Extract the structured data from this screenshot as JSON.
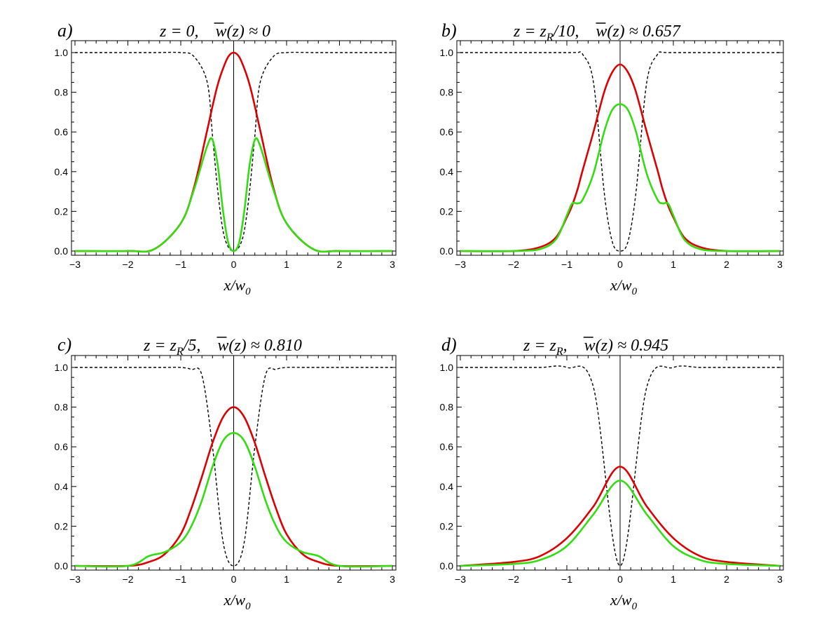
{
  "chart_data": [
    {
      "type": "line",
      "panel_label": "a)",
      "title_parts": [
        "z = 0,",
        "w(z) ≈ 0"
      ],
      "xlabel": "x/w",
      "xlabel_sub": "0",
      "xlim": [
        -3,
        3
      ],
      "ylim": [
        0,
        1
      ],
      "xticks": [
        "−3",
        "−2",
        "−1",
        "0",
        "1",
        "2",
        "3"
      ],
      "yticks": [
        "0.0",
        "0.2",
        "0.4",
        "0.6",
        "0.8",
        "1.0"
      ],
      "colors": {
        "red": "#dd0000",
        "green": "#33dd11",
        "dashed": "#000000"
      },
      "x": [
        -3.0,
        -2.0,
        -1.5,
        -1.0,
        -0.75,
        -0.5,
        -0.4,
        -0.3,
        -0.2,
        -0.1,
        0.0,
        0.1,
        0.2,
        0.3,
        0.4,
        0.5,
        0.75,
        1.0,
        1.5,
        2.0,
        3.0
      ],
      "series": [
        {
          "values": [
            0.0,
            0.0,
            0.01,
            0.14,
            0.32,
            0.61,
            0.73,
            0.84,
            0.92,
            0.98,
            1.0,
            0.98,
            0.92,
            0.84,
            0.73,
            0.61,
            0.32,
            0.14,
            0.01,
            0.0,
            0.0
          ]
        },
        {
          "values": [
            0.0,
            0.0,
            0.01,
            0.14,
            0.31,
            0.53,
            0.56,
            0.43,
            0.2,
            0.04,
            0.0,
            0.04,
            0.2,
            0.43,
            0.56,
            0.53,
            0.31,
            0.14,
            0.01,
            0.0,
            0.0
          ]
        },
        {
          "values": [
            1.0,
            1.0,
            1.0,
            1.0,
            0.98,
            0.85,
            0.58,
            0.3,
            0.1,
            0.02,
            0.0,
            0.02,
            0.1,
            0.3,
            0.58,
            0.85,
            0.98,
            1.0,
            1.0,
            1.0,
            1.0
          ]
        }
      ]
    },
    {
      "type": "line",
      "panel_label": "b)",
      "title_parts": [
        "z = z",
        "R",
        "/10,",
        "w(z) ≈ 0.657"
      ],
      "xlabel": "x/w",
      "xlabel_sub": "0",
      "xlim": [
        -3,
        3
      ],
      "ylim": [
        0,
        1
      ],
      "xticks": [
        "−3",
        "−2",
        "−1",
        "0",
        "1",
        "2",
        "3"
      ],
      "yticks": [
        "0.0",
        "0.2",
        "0.4",
        "0.6",
        "0.8",
        "1.0"
      ],
      "colors": {
        "red": "#dd0000",
        "green": "#33dd11",
        "dashed": "#000000"
      },
      "x": [
        -3.0,
        -2.0,
        -1.5,
        -1.2,
        -1.0,
        -0.9,
        -0.8,
        -0.7,
        -0.5,
        -0.3,
        -0.15,
        0.0,
        0.15,
        0.3,
        0.5,
        0.7,
        0.8,
        0.9,
        1.0,
        1.2,
        1.5,
        2.0,
        3.0
      ],
      "series": [
        {
          "values": [
            0.0,
            0.0,
            0.02,
            0.07,
            0.17,
            0.23,
            0.31,
            0.41,
            0.6,
            0.8,
            0.9,
            0.94,
            0.9,
            0.8,
            0.6,
            0.41,
            0.31,
            0.23,
            0.17,
            0.07,
            0.02,
            0.0,
            0.0
          ]
        },
        {
          "values": [
            0.0,
            0.0,
            0.01,
            0.06,
            0.18,
            0.24,
            0.24,
            0.26,
            0.39,
            0.6,
            0.71,
            0.74,
            0.71,
            0.6,
            0.39,
            0.26,
            0.24,
            0.24,
            0.18,
            0.06,
            0.01,
            0.0,
            0.0
          ]
        },
        {
          "values": [
            1.0,
            1.0,
            1.0,
            1.0,
            1.0,
            1.0,
            1.0,
            0.99,
            0.85,
            0.3,
            0.05,
            0.0,
            0.05,
            0.3,
            0.85,
            0.99,
            1.0,
            1.0,
            1.0,
            1.0,
            1.0,
            1.0,
            1.0
          ]
        }
      ]
    },
    {
      "type": "line",
      "panel_label": "c)",
      "title_parts": [
        "z = z",
        "R",
        "/5,",
        "w(z) ≈ 0.810"
      ],
      "xlabel": "x/w",
      "xlabel_sub": "0",
      "xlim": [
        -3,
        3
      ],
      "ylim": [
        0,
        1
      ],
      "xticks": [
        "−3",
        "−2",
        "−1",
        "0",
        "1",
        "2",
        "3"
      ],
      "yticks": [
        "0.0",
        "0.2",
        "0.4",
        "0.6",
        "0.8",
        "1.0"
      ],
      "colors": {
        "red": "#dd0000",
        "green": "#33dd11",
        "dashed": "#000000"
      },
      "x": [
        -3.0,
        -2.0,
        -1.6,
        -1.3,
        -1.0,
        -0.8,
        -0.6,
        -0.4,
        -0.2,
        0.0,
        0.2,
        0.4,
        0.6,
        0.8,
        1.0,
        1.3,
        1.6,
        2.0,
        3.0
      ],
      "series": [
        {
          "values": [
            0.0,
            0.0,
            0.02,
            0.06,
            0.16,
            0.29,
            0.45,
            0.62,
            0.75,
            0.8,
            0.75,
            0.62,
            0.45,
            0.29,
            0.16,
            0.06,
            0.02,
            0.0,
            0.0
          ]
        },
        {
          "values": [
            0.0,
            0.0,
            0.05,
            0.07,
            0.12,
            0.2,
            0.33,
            0.5,
            0.63,
            0.67,
            0.63,
            0.5,
            0.33,
            0.2,
            0.12,
            0.07,
            0.05,
            0.0,
            0.0
          ]
        },
        {
          "values": [
            1.0,
            1.0,
            1.0,
            1.0,
            1.0,
            0.99,
            0.96,
            0.6,
            0.12,
            0.0,
            0.12,
            0.6,
            0.96,
            0.99,
            1.0,
            1.0,
            1.0,
            1.0,
            1.0
          ]
        }
      ]
    },
    {
      "type": "line",
      "panel_label": "d)",
      "title_parts": [
        "z = z",
        "R",
        ",",
        "w(z) ≈ 0.945"
      ],
      "xlabel": "x/w",
      "xlabel_sub": "0",
      "xlim": [
        -3,
        3
      ],
      "ylim": [
        0,
        1
      ],
      "xticks": [
        "−3",
        "−2",
        "−1",
        "0",
        "1",
        "2",
        "3"
      ],
      "yticks": [
        "0.0",
        "0.2",
        "0.4",
        "0.6",
        "0.8",
        "1.0"
      ],
      "colors": {
        "red": "#dd0000",
        "green": "#33dd11",
        "dashed": "#000000"
      },
      "x": [
        -3.0,
        -2.0,
        -1.5,
        -1.0,
        -0.5,
        0.0,
        0.5,
        1.0,
        1.5,
        2.0,
        3.0
      ],
      "series": [
        {
          "values": [
            0.0,
            0.02,
            0.05,
            0.14,
            0.3,
            0.5,
            0.3,
            0.14,
            0.05,
            0.02,
            0.0
          ]
        },
        {
          "values": [
            0.0,
            0.01,
            0.03,
            0.1,
            0.26,
            0.43,
            0.26,
            0.1,
            0.03,
            0.01,
            0.0
          ]
        },
        {
          "values": [
            1.0,
            1.0,
            1.0,
            1.0,
            0.9,
            0.0,
            0.9,
            1.0,
            1.0,
            1.0,
            1.0
          ]
        }
      ]
    }
  ]
}
